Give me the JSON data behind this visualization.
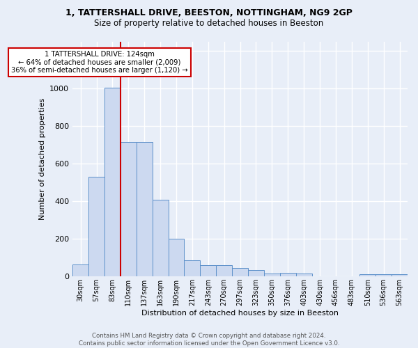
{
  "title1": "1, TATTERSHALL DRIVE, BEESTON, NOTTINGHAM, NG9 2GP",
  "title2": "Size of property relative to detached houses in Beeston",
  "xlabel": "Distribution of detached houses by size in Beeston",
  "ylabel": "Number of detached properties",
  "categories": [
    "30sqm",
    "57sqm",
    "83sqm",
    "110sqm",
    "137sqm",
    "163sqm",
    "190sqm",
    "217sqm",
    "243sqm",
    "270sqm",
    "297sqm",
    "323sqm",
    "350sqm",
    "376sqm",
    "403sqm",
    "430sqm",
    "456sqm",
    "483sqm",
    "510sqm",
    "536sqm",
    "563sqm"
  ],
  "values": [
    65,
    530,
    1005,
    715,
    715,
    410,
    200,
    85,
    60,
    60,
    45,
    35,
    15,
    18,
    15,
    2,
    2,
    2,
    12,
    12,
    12
  ],
  "bar_color": "#ccd9f0",
  "bar_edge_color": "#5b8fc9",
  "annotation_text": "1 TATTERSHALL DRIVE: 124sqm\n← 64% of detached houses are smaller (2,009)\n36% of semi-detached houses are larger (1,120) →",
  "annotation_box_color": "#ffffff",
  "annotation_box_edge_color": "#cc0000",
  "footer": "Contains HM Land Registry data © Crown copyright and database right 2024.\nContains public sector information licensed under the Open Government Licence v3.0.",
  "ylim": [
    0,
    1250
  ],
  "background_color": "#e8eef8",
  "grid_color": "#d0d8e8",
  "red_line_index": 3.5
}
